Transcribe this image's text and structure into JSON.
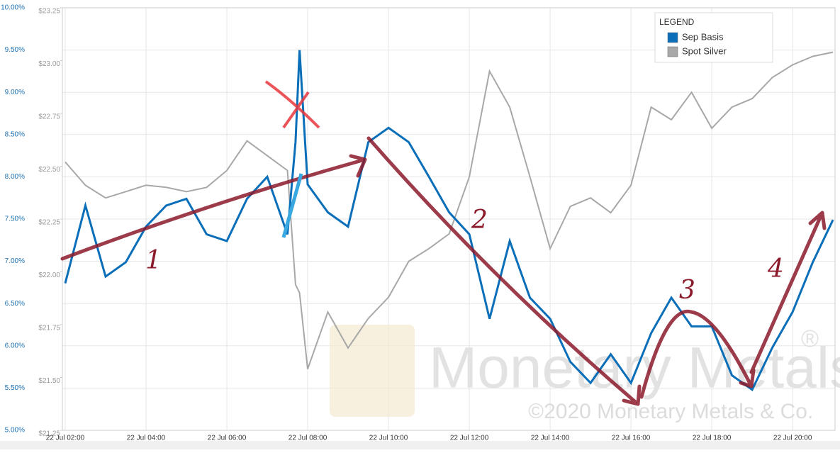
{
  "chart_data": {
    "type": "line",
    "x": [
      2,
      2.5,
      3,
      3.5,
      4,
      4.5,
      5,
      5.5,
      6,
      6.5,
      7,
      7.5,
      7.7,
      7.8,
      8,
      8.5,
      9,
      9.5,
      10,
      10.5,
      11,
      11.5,
      12,
      12.5,
      13,
      13.5,
      14,
      14.5,
      15,
      15.5,
      16,
      16.5,
      17,
      17.5,
      18,
      18.5,
      19,
      19.5,
      20,
      20.5,
      21
    ],
    "series": [
      {
        "name": "Sep Basis",
        "color": "#0a6fb8",
        "values": [
          6.74,
          7.66,
          6.82,
          6.99,
          7.41,
          7.66,
          7.74,
          7.32,
          7.24,
          7.74,
          8.0,
          7.32,
          8.41,
          9.5,
          7.91,
          7.58,
          7.41,
          8.41,
          8.58,
          8.41,
          8.0,
          7.58,
          7.32,
          6.32,
          7.24,
          6.57,
          6.32,
          5.81,
          5.56,
          5.9,
          5.56,
          6.15,
          6.57,
          6.23,
          6.23,
          5.65,
          5.48,
          5.98,
          6.4,
          6.99,
          7.49
        ]
      },
      {
        "name": "Spot Silver",
        "color": "#a8a8a8",
        "axis": "y2",
        "values": [
          22.52,
          22.41,
          22.35,
          22.38,
          22.41,
          22.4,
          22.38,
          22.4,
          22.48,
          22.62,
          22.55,
          22.48,
          21.94,
          21.9,
          21.54,
          21.81,
          21.64,
          21.78,
          21.88,
          22.05,
          22.11,
          22.18,
          22.45,
          22.95,
          22.78,
          22.45,
          22.11,
          22.31,
          22.35,
          22.28,
          22.41,
          22.78,
          22.72,
          22.85,
          22.68,
          22.78,
          22.82,
          22.92,
          22.98,
          23.02,
          23.04
        ]
      }
    ],
    "xlim": [
      1.93,
      21.05
    ],
    "xticks": [
      {
        "value": 2,
        "label": "22 Jul 02:00"
      },
      {
        "value": 4,
        "label": "22 Jul 04:00"
      },
      {
        "value": 6,
        "label": "22 Jul 06:00"
      },
      {
        "value": 8,
        "label": "22 Jul 08:00"
      },
      {
        "value": 10,
        "label": "22 Jul 10:00"
      },
      {
        "value": 12,
        "label": "22 Jul 12:00"
      },
      {
        "value": 14,
        "label": "22 Jul 14:00"
      },
      {
        "value": 16,
        "label": "22 Jul 16:00"
      },
      {
        "value": 18,
        "label": "22 Jul 18:00"
      },
      {
        "value": 20,
        "label": "22 Jul 20:00"
      }
    ],
    "ylim": [
      5,
      10
    ],
    "yticks": [
      {
        "value": 5,
        "label": "5.00%"
      },
      {
        "value": 5.5,
        "label": "5.50%"
      },
      {
        "value": 6,
        "label": "6.00%"
      },
      {
        "value": 6.5,
        "label": "6.50%"
      },
      {
        "value": 7,
        "label": "7.00%"
      },
      {
        "value": 7.5,
        "label": "7.50%"
      },
      {
        "value": 8,
        "label": "8.00%"
      },
      {
        "value": 8.5,
        "label": "8.50%"
      },
      {
        "value": 9,
        "label": "9.00%"
      },
      {
        "value": 9.5,
        "label": "9.50%"
      },
      {
        "value": 10,
        "label": "10.00%"
      }
    ],
    "y2lim": [
      21.25,
      23.25
    ],
    "y2ticks": [
      {
        "value": 21.25,
        "label": "$21.25"
      },
      {
        "value": 21.5,
        "label": "$21.50"
      },
      {
        "value": 21.75,
        "label": "$21.75"
      },
      {
        "value": 22,
        "label": "$22.00"
      },
      {
        "value": 22.25,
        "label": "$22.25"
      },
      {
        "value": 22.5,
        "label": "$22.50"
      },
      {
        "value": 22.75,
        "label": "$22.75"
      },
      {
        "value": 23,
        "label": "$23.00"
      },
      {
        "value": 23.25,
        "label": "$23.25"
      }
    ],
    "grid": true,
    "legend_title": "LEGEND",
    "legend": "top-right",
    "annotations": [
      "1",
      "2",
      "3",
      "4"
    ],
    "watermark": [
      "Monetary Metals",
      "®",
      "©2020 Monetary Metals & Co."
    ]
  }
}
